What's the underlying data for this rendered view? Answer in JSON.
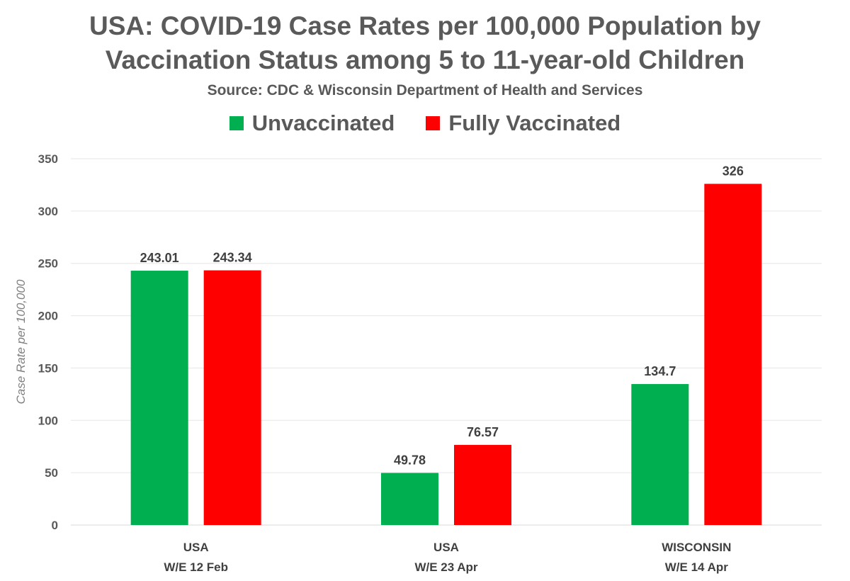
{
  "chart_data": {
    "type": "bar",
    "title_line1": "USA: COVID-19 Case Rates per 100,000 Population by",
    "title_line2": "Vaccination Status among 5 to 11-year-old Children",
    "subtitle": "Source: CDC & Wisconsin Department of Health and Services",
    "ylabel": "Case Rate per 100,000",
    "xlabel": "",
    "categories": [
      [
        "USA",
        "W/E 12 Feb"
      ],
      [
        "USA",
        "W/E 23 Apr"
      ],
      [
        "WISCONSIN",
        "W/E 14 Apr"
      ]
    ],
    "series": [
      {
        "name": "Unvaccinated",
        "color": "#00b050",
        "values": [
          243.01,
          49.78,
          134.7
        ],
        "labels": [
          "243.01",
          "49.78",
          "134.7"
        ]
      },
      {
        "name": "Fully Vaccinated",
        "color": "#ff0000",
        "values": [
          243.34,
          76.57,
          326
        ],
        "labels": [
          "243.34",
          "76.57",
          "326"
        ]
      }
    ],
    "ylim": [
      0,
      350
    ],
    "yticks": [
      0,
      50,
      100,
      150,
      200,
      250,
      300,
      350
    ],
    "grid": true,
    "legend_position": "top"
  }
}
